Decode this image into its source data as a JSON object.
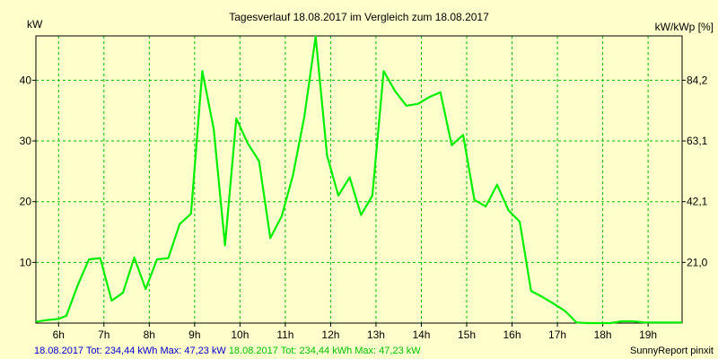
{
  "chart_data": {
    "type": "line",
    "title": "Tagesverlauf 18.08.2017 im Vergleich zum 18.08.2017",
    "ylabel_left": "kW",
    "ylabel_right": "kW/kWp [%]",
    "xlim": [
      5.5,
      19.75
    ],
    "ylim": [
      0,
      47.3
    ],
    "grid": true,
    "x_ticks": [
      {
        "x": 6,
        "label": "6h"
      },
      {
        "x": 7,
        "label": "7h"
      },
      {
        "x": 8,
        "label": "8h"
      },
      {
        "x": 9,
        "label": "9h"
      },
      {
        "x": 10,
        "label": "10h"
      },
      {
        "x": 11,
        "label": "11h"
      },
      {
        "x": 12,
        "label": "12h"
      },
      {
        "x": 13,
        "label": "13h"
      },
      {
        "x": 14,
        "label": "14h"
      },
      {
        "x": 15,
        "label": "15h"
      },
      {
        "x": 16,
        "label": "16h"
      },
      {
        "x": 17,
        "label": "17h"
      },
      {
        "x": 18,
        "label": "18h"
      },
      {
        "x": 19,
        "label": "19h"
      }
    ],
    "y_ticks_left": [
      {
        "y": 10,
        "label": "10"
      },
      {
        "y": 20,
        "label": "20"
      },
      {
        "y": 30,
        "label": "30"
      },
      {
        "y": 40,
        "label": "40"
      }
    ],
    "y_ticks_right": [
      {
        "y": 10,
        "label": "21,0"
      },
      {
        "y": 20,
        "label": "42,1"
      },
      {
        "y": 30,
        "label": "63,1"
      },
      {
        "y": 40,
        "label": "84,2"
      }
    ],
    "series": [
      {
        "color": "#00EE00",
        "points": [
          [
            5.5,
            0.2
          ],
          [
            5.75,
            0.5
          ],
          [
            6.0,
            0.7
          ],
          [
            6.17,
            1.2
          ],
          [
            6.42,
            6.2
          ],
          [
            6.67,
            10.5
          ],
          [
            6.92,
            10.7
          ],
          [
            7.17,
            3.7
          ],
          [
            7.42,
            5.0
          ],
          [
            7.67,
            10.8
          ],
          [
            7.92,
            5.6
          ],
          [
            8.17,
            10.5
          ],
          [
            8.42,
            10.7
          ],
          [
            8.67,
            16.3
          ],
          [
            8.92,
            18.0
          ],
          [
            9.17,
            41.5
          ],
          [
            9.42,
            32.0
          ],
          [
            9.67,
            12.8
          ],
          [
            9.92,
            33.7
          ],
          [
            10.17,
            29.6
          ],
          [
            10.42,
            26.7
          ],
          [
            10.67,
            14.0
          ],
          [
            10.92,
            17.6
          ],
          [
            11.17,
            24.4
          ],
          [
            11.42,
            34.0
          ],
          [
            11.67,
            47.2
          ],
          [
            11.92,
            27.6
          ],
          [
            12.17,
            21.0
          ],
          [
            12.42,
            24.0
          ],
          [
            12.67,
            17.8
          ],
          [
            12.92,
            21.0
          ],
          [
            13.17,
            41.5
          ],
          [
            13.42,
            38.2
          ],
          [
            13.67,
            35.8
          ],
          [
            13.92,
            36.1
          ],
          [
            14.17,
            37.2
          ],
          [
            14.42,
            38.0
          ],
          [
            14.67,
            29.3
          ],
          [
            14.92,
            31.0
          ],
          [
            15.17,
            20.3
          ],
          [
            15.42,
            19.2
          ],
          [
            15.67,
            22.8
          ],
          [
            15.92,
            18.6
          ],
          [
            16.17,
            16.7
          ],
          [
            16.42,
            5.3
          ],
          [
            16.67,
            4.3
          ],
          [
            16.92,
            3.2
          ],
          [
            17.17,
            2.0
          ],
          [
            17.42,
            0.1
          ],
          [
            17.67,
            0.0
          ],
          [
            18.17,
            0.0
          ],
          [
            18.42,
            0.3
          ],
          [
            18.67,
            0.3
          ],
          [
            18.92,
            0.1
          ],
          [
            19.75,
            0.1
          ]
        ]
      }
    ],
    "footer": {
      "left_blue": "18.08.2017 Tot: 234,44 kWh Max: 47,23 kW",
      "left_green": "18.08.2017 Tot: 234,44 kWh Max: 47,23 kW",
      "right": "SunnyReport pinxit"
    }
  },
  "colors": {
    "background": "#FFFFCC",
    "grid": "#00C000",
    "series": "#00EE00",
    "footer_blue": "#0000CC",
    "footer_green": "#00C000"
  }
}
